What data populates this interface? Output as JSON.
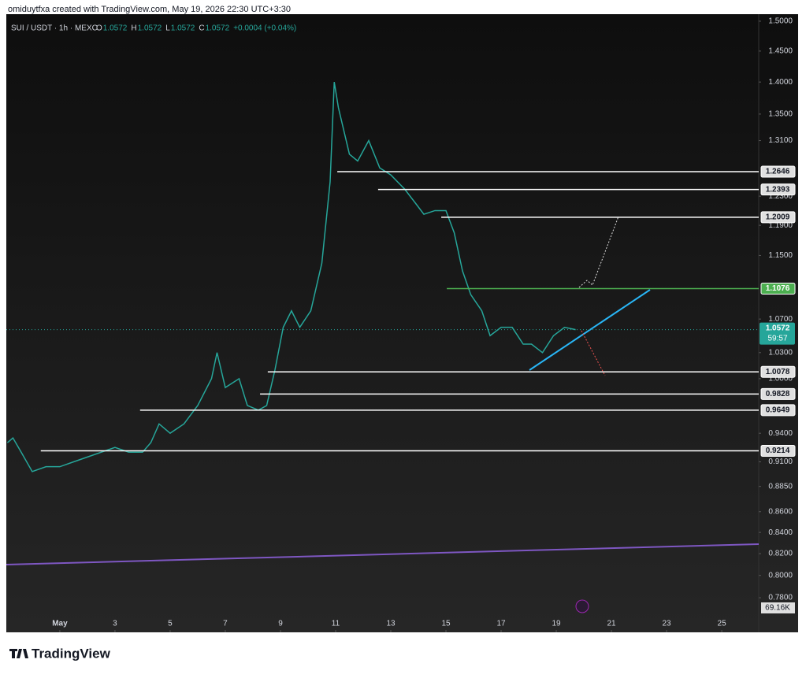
{
  "header": {
    "caption": "omiduytfxa created with TradingView.com, May 19, 2026 22:30 UTC+3:30"
  },
  "footer": {
    "brand": "TradingView"
  },
  "chart_data": {
    "type": "line",
    "log_scale": true,
    "legend": {
      "symbol": "SUI / USDT · 1h · MEXC",
      "ohlc": [
        {
          "label": "O",
          "value": "1.0572"
        },
        {
          "label": "H",
          "value": "1.0572"
        },
        {
          "label": "L",
          "value": "1.0572"
        },
        {
          "label": "C",
          "value": "1.0572"
        }
      ],
      "change": "+0.0004 (+0.04%)"
    },
    "series": [
      {
        "name": "SUI / USDT",
        "color": "#26a69a",
        "x": [
          -0.9,
          -0.7,
          -0.4,
          0,
          0.5,
          1,
          1.5,
          2,
          2.5,
          3,
          3.5,
          4,
          4.3,
          4.6,
          5,
          5.5,
          6,
          6.5,
          6.7,
          7,
          7.5,
          7.8,
          8.2,
          8.5,
          8.8,
          9.1,
          9.4,
          9.7,
          10.1,
          10.5,
          10.8,
          10.95,
          11.1,
          11.5,
          11.8,
          12.2,
          12.6,
          13,
          13.5,
          13.9,
          14.2,
          14.6,
          15,
          15.3,
          15.6,
          15.9,
          16.3,
          16.6,
          17,
          17.4,
          17.8,
          18.1,
          18.5,
          18.9,
          19.3,
          19.7
        ],
        "values": [
          0.93,
          0.935,
          0.92,
          0.9,
          0.905,
          0.905,
          0.91,
          0.915,
          0.92,
          0.925,
          0.92,
          0.92,
          0.93,
          0.95,
          0.94,
          0.95,
          0.97,
          1.0,
          1.03,
          0.99,
          1.0,
          0.97,
          0.965,
          0.97,
          1.01,
          1.06,
          1.08,
          1.06,
          1.08,
          1.14,
          1.25,
          1.4,
          1.36,
          1.29,
          1.28,
          1.31,
          1.27,
          1.26,
          1.24,
          1.22,
          1.205,
          1.21,
          1.21,
          1.18,
          1.13,
          1.1,
          1.08,
          1.05,
          1.06,
          1.06,
          1.04,
          1.04,
          1.03,
          1.05,
          1.06,
          1.0572
        ]
      }
    ],
    "xlim": [
      -0.94,
      26.34
    ],
    "xticks": [
      {
        "value": 1,
        "label": "May"
      },
      3,
      5,
      7,
      9,
      11,
      13,
      15,
      17,
      19,
      21,
      23,
      25
    ],
    "ylim": [
      0.75,
      1.512
    ],
    "yticks": [
      {
        "value": 1.5,
        "label": "1.5000"
      },
      {
        "value": 1.45,
        "label": "1.4500"
      },
      {
        "value": 1.4,
        "label": "1.4000"
      },
      {
        "value": 1.35,
        "label": "1.3500"
      },
      {
        "value": 1.31,
        "label": "1.3100"
      },
      {
        "value": 1.23,
        "label": "1.2300"
      },
      {
        "value": 1.19,
        "label": "1.1900"
      },
      {
        "value": 1.15,
        "label": "1.1500"
      },
      {
        "value": 1.07,
        "label": "1.0700"
      },
      {
        "value": 1.03,
        "label": "1.0300"
      },
      {
        "value": 1.0,
        "label": "1.0000"
      },
      {
        "value": 0.94,
        "label": "0.9400"
      },
      {
        "value": 0.91,
        "label": "0.9100"
      },
      {
        "value": 0.885,
        "label": "0.8850"
      },
      {
        "value": 0.86,
        "label": "0.8600"
      },
      {
        "value": 0.84,
        "label": "0.8400"
      },
      {
        "value": 0.82,
        "label": "0.8200"
      },
      {
        "value": 0.8,
        "label": "0.8000"
      },
      {
        "value": 0.78,
        "label": "0.7800"
      }
    ],
    "levels": [
      {
        "value": 1.2646,
        "from": 11.06,
        "color": "#ffffff"
      },
      {
        "value": 1.2393,
        "from": 12.54,
        "color": "#ffffff"
      },
      {
        "value": 1.2009,
        "from": 14.83,
        "color": "#ffffff"
      },
      {
        "value": 1.1076,
        "from": 15.03,
        "color": "#4caf50"
      },
      {
        "value": 1.0078,
        "from": 8.54,
        "color": "#ffffff"
      },
      {
        "value": 0.9828,
        "from": 8.26,
        "color": "#ffffff"
      },
      {
        "value": 0.9649,
        "from": 3.91,
        "color": "#ffffff"
      },
      {
        "value": 0.9214,
        "from": 0.31,
        "color": "#ffffff"
      }
    ],
    "last_price": 1.0572,
    "countdown": "59:57",
    "volume_label": "69.16K"
  }
}
